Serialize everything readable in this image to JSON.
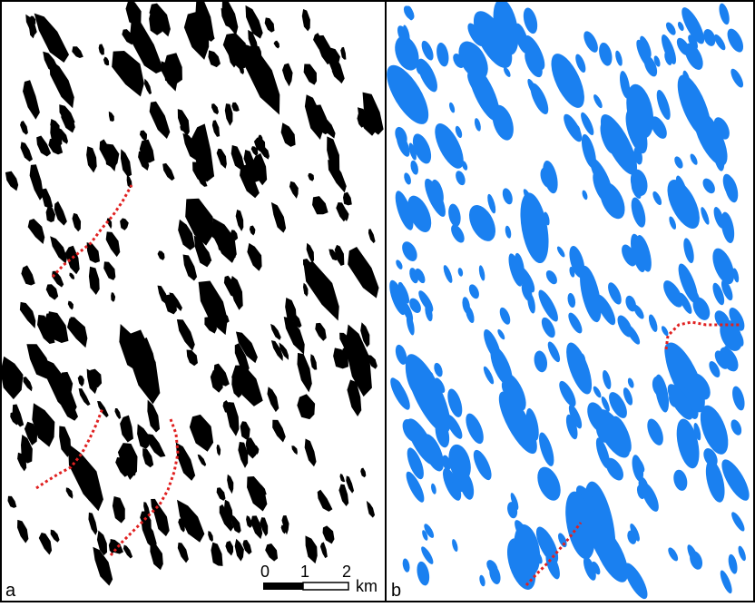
{
  "panel_a": {
    "label": "a",
    "scale_bar": {
      "ticks": [
        "0",
        "1",
        "2"
      ],
      "unit": "km"
    }
  },
  "panel_b": {
    "label": "b"
  },
  "colors": {
    "panel_a_fill": "#000000",
    "panel_b_fill": "#1a80f0",
    "trace_line": "#e02020",
    "border": "#000000"
  }
}
